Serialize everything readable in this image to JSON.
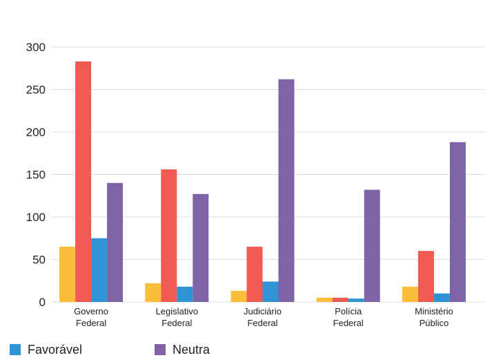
{
  "chart_data": {
    "type": "bar",
    "categories": [
      [
        "Governo",
        "Federal"
      ],
      [
        "Legislativo",
        "Federal"
      ],
      [
        "Judiciário",
        "Federal"
      ],
      [
        "Polícia",
        "Federal"
      ],
      [
        "Ministério",
        "Público"
      ]
    ],
    "series": [
      {
        "color": "#FBBE3B",
        "values": [
          65,
          22,
          13,
          5,
          18
        ]
      },
      {
        "color": "#F05A50",
        "values": [
          283,
          156,
          65,
          5,
          60
        ]
      },
      {
        "name": "Favorável",
        "color": "#2E94D6",
        "values": [
          75,
          18,
          24,
          4,
          10
        ]
      },
      {
        "name": "Neutra",
        "color": "#8063A6",
        "values": [
          140,
          127,
          262,
          132,
          188
        ]
      }
    ],
    "yticks": [
      "0",
      "50",
      "100",
      "150",
      "200",
      "250",
      "300"
    ],
    "ylim": [
      0,
      300
    ],
    "grid": true,
    "legend_position": "bottom"
  },
  "legend": {
    "favoravel": "Favorável",
    "neutra": "Neutra"
  },
  "colors": {
    "favoravel": "#2E94D6",
    "neutra": "#8063A6",
    "grid": "#DDDDDD"
  }
}
